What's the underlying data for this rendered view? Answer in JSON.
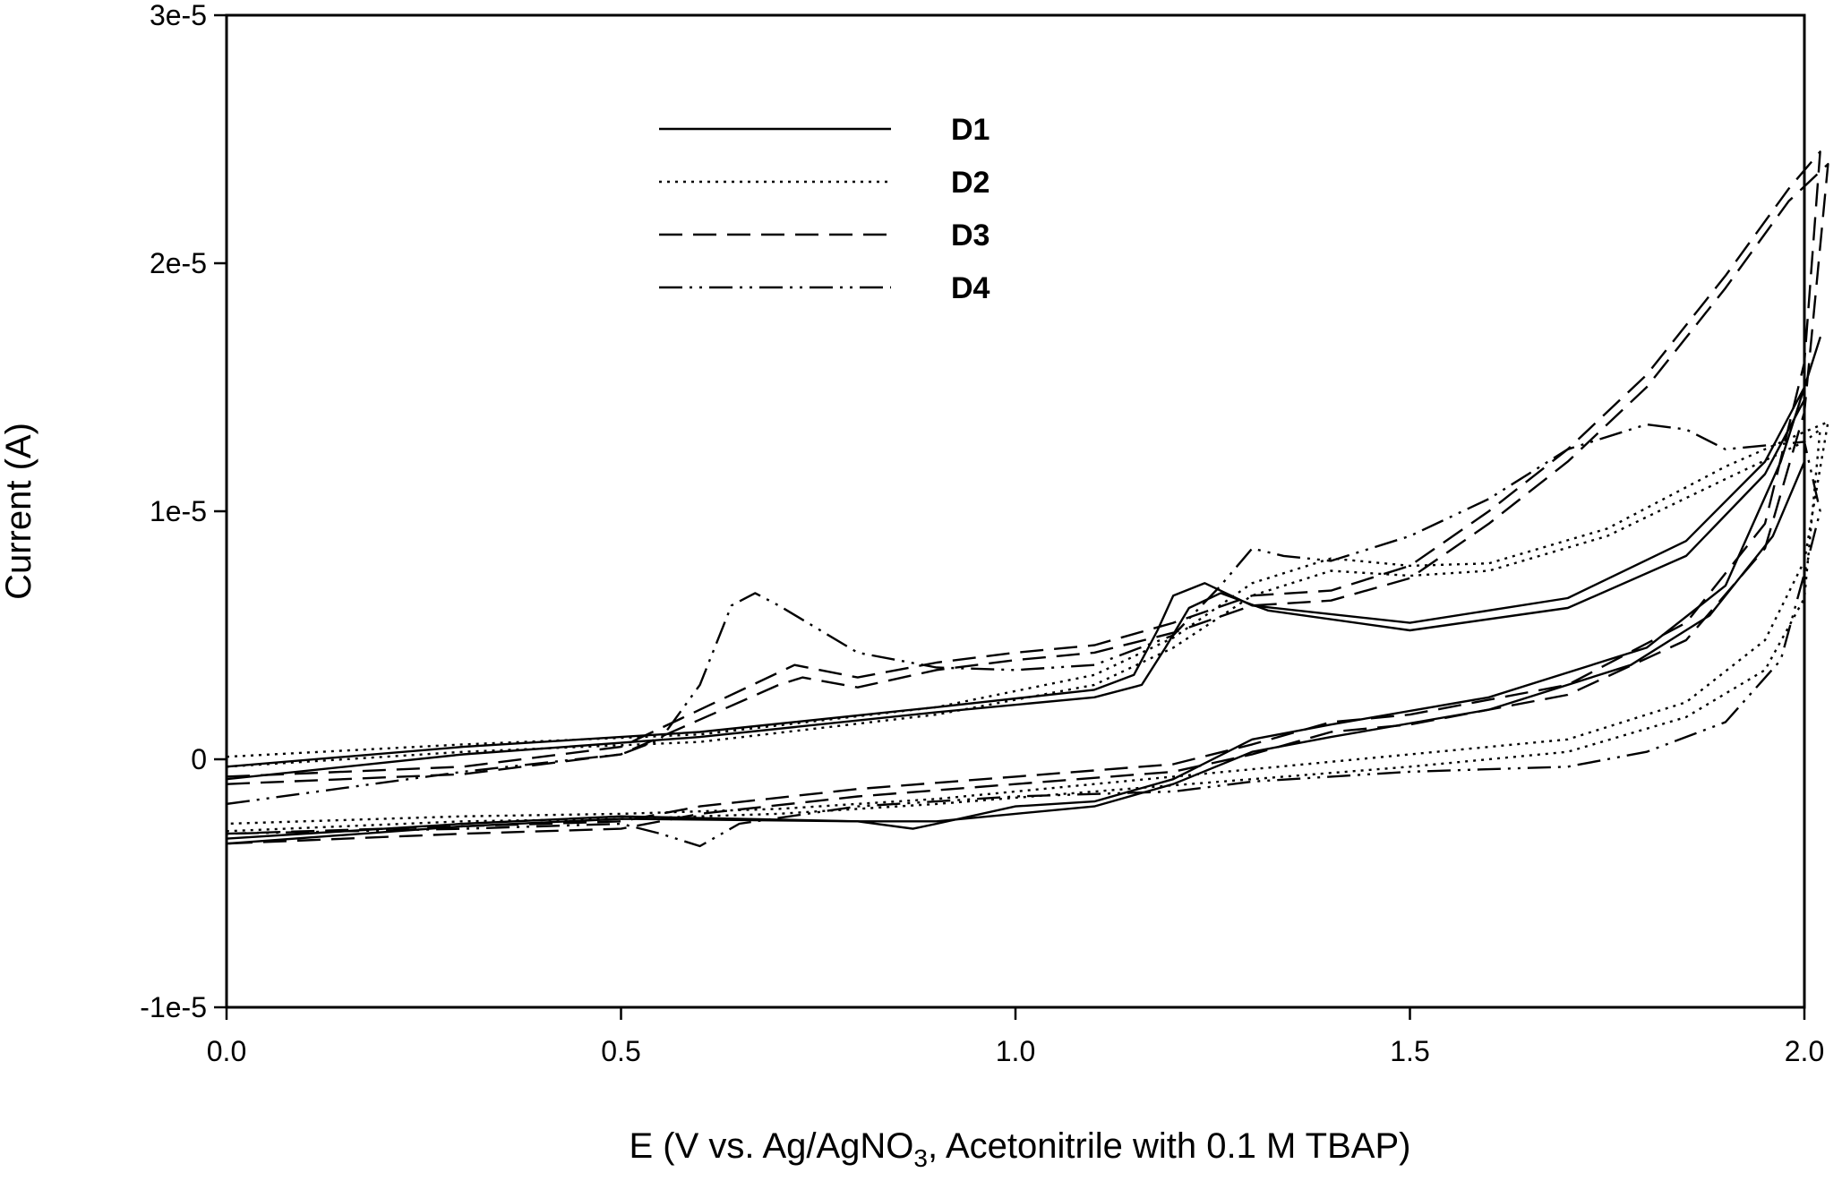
{
  "chart_data": {
    "type": "line",
    "title": "",
    "xlabel": "E (V vs. Ag/AgNO",
    "xlabel_subscript": "3",
    "xlabel_suffix": ", Acetonitrile with 0.1 M TBAP)",
    "ylabel": "Current (A)",
    "xlim": [
      0.0,
      2.05
    ],
    "ylim": [
      -1e-05,
      3e-05
    ],
    "x_ticks": [
      {
        "value": 0.0,
        "label": "0.0"
      },
      {
        "value": 0.5,
        "label": "0.5"
      },
      {
        "value": 1.0,
        "label": "1.0"
      },
      {
        "value": 1.5,
        "label": "1.5"
      },
      {
        "value": 2.0,
        "label": "2.0"
      }
    ],
    "y_ticks": [
      {
        "value": -1e-05,
        "label": "-1e-5"
      },
      {
        "value": 0,
        "label": "0"
      },
      {
        "value": 1e-05,
        "label": "1e-5"
      },
      {
        "value": 2e-05,
        "label": "2e-5"
      },
      {
        "value": 3e-05,
        "label": "3e-5"
      }
    ],
    "grid": false,
    "legend_position": "top-center",
    "series": [
      {
        "name": "D1",
        "dash": "solid",
        "cycles": [
          {
            "x": [
              0.0,
              0.3,
              0.6,
              0.9,
              1.1,
              1.15,
              1.18,
              1.2,
              1.24,
              1.3,
              1.5,
              1.7,
              1.85,
              1.95,
              2.0,
              2.02,
              1.97,
              1.9,
              1.8,
              1.6,
              1.4,
              1.3,
              1.2,
              1.1,
              1.0,
              0.9,
              0.87,
              0.8,
              0.5,
              0.3,
              0.0
            ],
            "y": [
              -3e-07,
              5e-07,
              1.1e-06,
              2.1e-06,
              2.8e-06,
              3.4e-06,
              5.2e-06,
              6.6e-06,
              7.1e-06,
              6.2e-06,
              5.5e-06,
              6.5e-06,
              8.8e-06,
              1.2e-05,
              1.5e-05,
              1.7e-05,
              1.2e-05,
              7e-06,
              4.5e-06,
              2.5e-06,
              1.4e-06,
              8e-07,
              -8e-07,
              -1.7e-06,
              -1.9e-06,
              -2.6e-06,
              -2.8e-06,
              -2.5e-06,
              -2.3e-06,
              -2.6e-06,
              -3.2e-06
            ]
          },
          {
            "x": [
              0.0,
              0.3,
              0.6,
              0.9,
              1.1,
              1.16,
              1.19,
              1.22,
              1.26,
              1.32,
              1.5,
              1.7,
              1.85,
              1.95,
              2.0,
              2.0,
              1.96,
              1.88,
              1.78,
              1.6,
              1.4,
              1.3,
              1.2,
              1.1,
              1.0,
              0.9,
              0.8,
              0.5,
              0.3,
              0.0
            ],
            "y": [
              -8e-07,
              2e-07,
              9e-07,
              1.9e-06,
              2.5e-06,
              3e-06,
              4.5e-06,
              6.1e-06,
              6.7e-06,
              6e-06,
              5.2e-06,
              6.1e-06,
              8.2e-06,
              1.15e-05,
              1.45e-05,
              1.2e-05,
              9e-06,
              5.8e-06,
              3.8e-06,
              2e-06,
              9e-07,
              3e-07,
              -1e-06,
              -1.9e-06,
              -2.2e-06,
              -2.5e-06,
              -2.5e-06,
              -2.4e-06,
              -2.7e-06,
              -3.4e-06
            ]
          }
        ]
      },
      {
        "name": "D2",
        "dash": "dotted",
        "cycles": [
          {
            "x": [
              0.0,
              0.3,
              0.6,
              0.9,
              1.1,
              1.2,
              1.3,
              1.4,
              1.5,
              1.6,
              1.75,
              1.9,
              2.0,
              2.03,
              2.0,
              1.95,
              1.85,
              1.7,
              1.5,
              1.3,
              1.1,
              0.9,
              0.7,
              0.5,
              0.3,
              0.0
            ],
            "y": [
              1e-07,
              6e-07,
              1e-06,
              2.1e-06,
              3.4e-06,
              4.9e-06,
              7.1e-06,
              8.1e-06,
              7.8e-06,
              7.9e-06,
              9.3e-06,
              1.18e-05,
              1.32e-05,
              1.36e-05,
              8e-06,
              4.8e-06,
              2.3e-06,
              8e-07,
              2e-07,
              -4e-07,
              -1e-06,
              -1.6e-06,
              -2e-06,
              -2.2e-06,
              -2.3e-06,
              -2.6e-06
            ]
          },
          {
            "x": [
              0.0,
              0.3,
              0.6,
              0.9,
              1.1,
              1.2,
              1.3,
              1.4,
              1.5,
              1.6,
              1.75,
              1.9,
              2.0,
              2.02,
              2.0,
              1.95,
              1.85,
              1.7,
              1.5,
              1.3,
              1.1,
              0.9,
              0.7,
              0.5,
              0.3,
              0.0
            ],
            "y": [
              -3e-07,
              3e-07,
              7e-07,
              1.8e-06,
              3e-06,
              4.5e-06,
              6.6e-06,
              7.6e-06,
              7.4e-06,
              7.6e-06,
              9e-06,
              1.13e-05,
              1.28e-05,
              1.33e-05,
              6.5e-06,
              3.6e-06,
              1.7e-06,
              3e-07,
              -3e-07,
              -8e-07,
              -1.3e-06,
              -1.8e-06,
              -2.2e-06,
              -2.4e-06,
              -2.5e-06,
              -2.9e-06
            ]
          }
        ]
      },
      {
        "name": "D3",
        "dash": "dashed",
        "cycles": [
          {
            "x": [
              0.0,
              0.3,
              0.5,
              0.6,
              0.7,
              0.72,
              0.8,
              0.9,
              1.0,
              1.1,
              1.2,
              1.3,
              1.4,
              1.5,
              1.6,
              1.7,
              1.8,
              1.9,
              1.98,
              2.02,
              2.0,
              1.95,
              1.85,
              1.7,
              1.5,
              1.4,
              1.3,
              1.2,
              1.0,
              0.8,
              0.6,
              0.5,
              0.3,
              0.0
            ],
            "y": [
              -7e-07,
              -3e-07,
              5e-07,
              2e-06,
              3.5e-06,
              3.8e-06,
              3.3e-06,
              3.9e-06,
              4.3e-06,
              4.6e-06,
              5.5e-06,
              6.6e-06,
              6.8e-06,
              7.8e-06,
              1e-05,
              1.25e-05,
              1.55e-05,
              1.95e-05,
              2.3e-05,
              2.45e-05,
              1.6e-05,
              9.5e-06,
              5.5e-06,
              3e-06,
              1.8e-06,
              1.5e-06,
              6e-07,
              -2e-07,
              -7e-07,
              -1.2e-06,
              -1.9e-06,
              -2.5e-06,
              -2.7e-06,
              -3e-06
            ]
          },
          {
            "x": [
              0.0,
              0.3,
              0.5,
              0.6,
              0.7,
              0.73,
              0.8,
              0.9,
              1.0,
              1.1,
              1.2,
              1.3,
              1.4,
              1.5,
              1.6,
              1.7,
              1.8,
              1.9,
              1.98,
              2.03,
              2.0,
              1.95,
              1.85,
              1.7,
              1.5,
              1.4,
              1.3,
              1.2,
              1.0,
              0.8,
              0.6,
              0.5,
              0.3,
              0.0
            ],
            "y": [
              -1e-06,
              -6e-07,
              2e-07,
              1.6e-06,
              3e-06,
              3.3e-06,
              2.9e-06,
              3.6e-06,
              4e-06,
              4.3e-06,
              5.1e-06,
              6.2e-06,
              6.4e-06,
              7.3e-06,
              9.5e-06,
              1.2e-05,
              1.5e-05,
              1.9e-05,
              2.25e-05,
              2.4e-05,
              1.4e-05,
              8.5e-06,
              4.8e-06,
              2.6e-06,
              1.4e-06,
              1.1e-06,
              2e-07,
              -5e-07,
              -1e-06,
              -1.5e-06,
              -2.2e-06,
              -2.8e-06,
              -3e-06,
              -3.4e-06
            ]
          }
        ]
      },
      {
        "name": "D4",
        "dash": "dash-dot-dot",
        "cycles": [
          {
            "x": [
              0.0,
              0.3,
              0.5,
              0.55,
              0.6,
              0.64,
              0.67,
              0.7,
              0.8,
              0.9,
              1.0,
              1.1,
              1.2,
              1.26,
              1.3,
              1.34,
              1.4,
              1.5,
              1.6,
              1.7,
              1.8,
              1.85,
              1.9,
              2.0,
              2.02,
              2.0,
              1.97,
              1.9,
              1.8,
              1.7,
              1.5,
              1.3,
              1.2,
              1.0,
              0.8,
              0.65,
              0.6,
              0.55,
              0.5,
              0.3,
              0.0
            ],
            "y": [
              -1.8e-06,
              -5e-07,
              2e-07,
              8e-07,
              3e-06,
              6.2e-06,
              6.7e-06,
              6.2e-06,
              4.3e-06,
              3.7e-06,
              3.6e-06,
              3.8e-06,
              5e-06,
              7e-06,
              8.5e-06,
              8.2e-06,
              8e-06,
              9e-06,
              1.05e-05,
              1.25e-05,
              1.35e-05,
              1.33e-05,
              1.25e-05,
              1.28e-05,
              1e-05,
              7.5e-06,
              4e-06,
              1.5e-06,
              3e-07,
              -3e-07,
              -5e-07,
              -9e-07,
              -1.3e-06,
              -1.5e-06,
              -1.9e-06,
              -2.6e-06,
              -3.5e-06,
              -3e-06,
              -2.6e-06,
              -2.8e-06,
              -3e-06
            ]
          }
        ]
      }
    ]
  }
}
